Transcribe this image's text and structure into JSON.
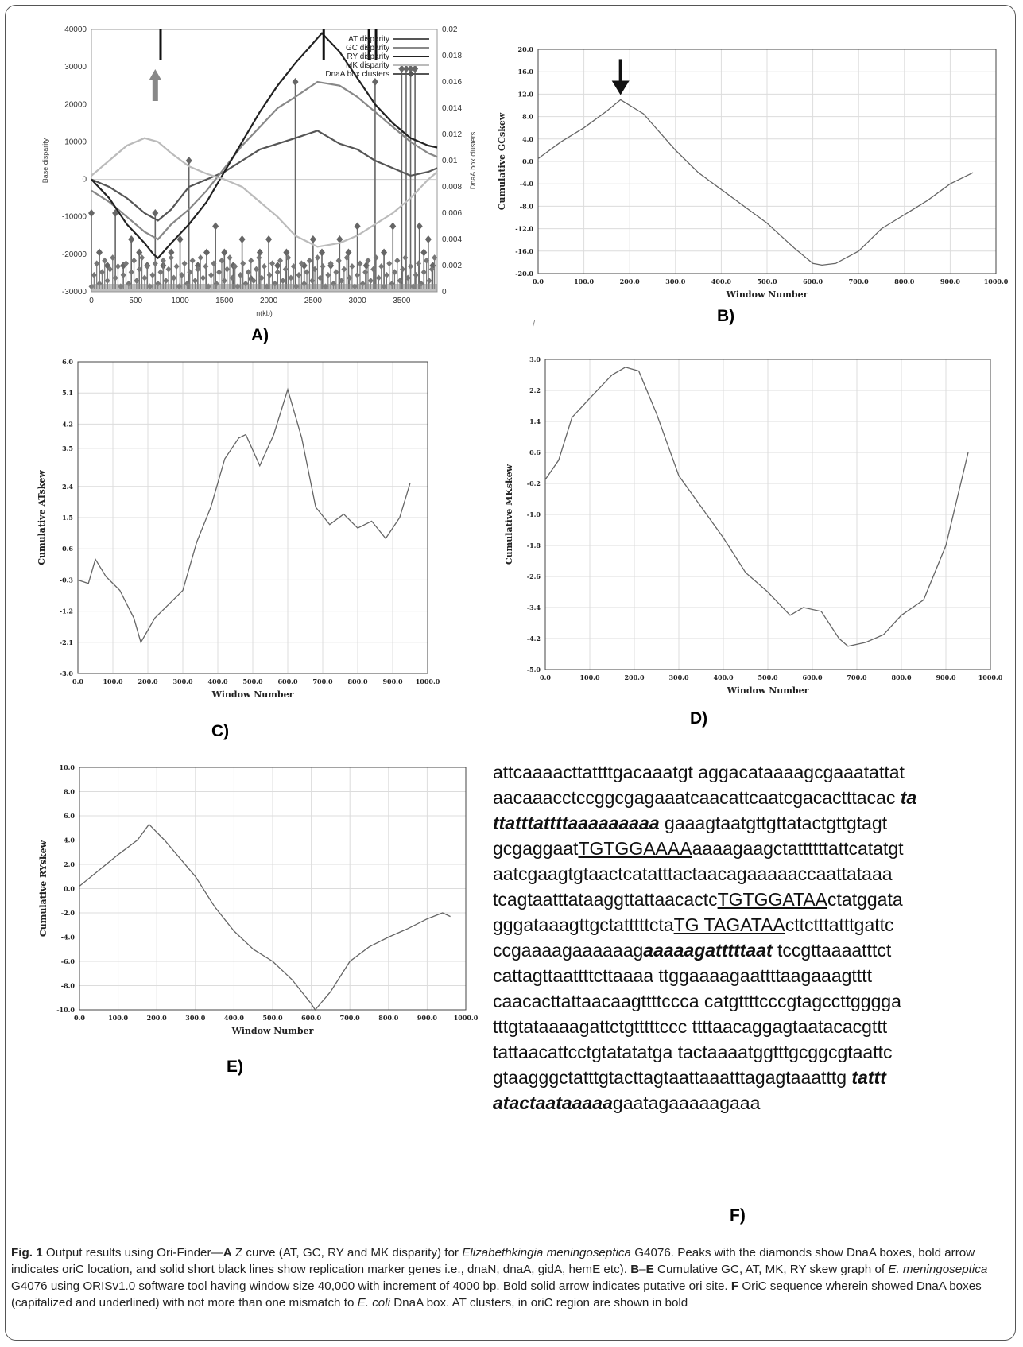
{
  "panels": {
    "A": {
      "label": "A)",
      "chart_data": {
        "type": "line",
        "ylabel": "Base disparity",
        "ylabel_right": "DnaA box clusters",
        "xlabel": "n(kb)",
        "xlim": [
          0,
          3900
        ],
        "ylim": [
          -30000,
          40000
        ],
        "ylim_right": [
          0,
          0.02
        ],
        "xticks": [
          0,
          500,
          1000,
          1500,
          2000,
          2500,
          3000,
          3500
        ],
        "yticks": [
          -30000,
          -20000,
          -10000,
          0,
          10000,
          20000,
          30000,
          40000
        ],
        "yticks_right": [
          0,
          0.002,
          0.004,
          0.006,
          0.008,
          0.01,
          0.012,
          0.014,
          0.016,
          0.018,
          0.02
        ],
        "legend_position": "top-right",
        "series": [
          {
            "name": "AT disparity",
            "color": "#555555",
            "x": [
              0,
              200,
              400,
              600,
              750,
              900,
              1100,
              1300,
              1500,
              1700,
              1900,
              2100,
              2300,
              2550,
              2800,
              3000,
              3200,
              3400,
              3600,
              3800,
              3900
            ],
            "y": [
              0,
              -2000,
              -5000,
              -9000,
              -11000,
              -8000,
              -2000,
              0,
              2000,
              5000,
              8000,
              9500,
              11000,
              13000,
              9500,
              8000,
              5000,
              3000,
              1000,
              2000,
              3000
            ]
          },
          {
            "name": "GC disparity",
            "color": "#888888",
            "x": [
              0,
              200,
              400,
              600,
              750,
              900,
              1100,
              1300,
              1500,
              1700,
              1900,
              2100,
              2300,
              2550,
              2800,
              3000,
              3200,
              3400,
              3600,
              3800,
              3900
            ],
            "y": [
              -3000,
              -6000,
              -10000,
              -14000,
              -16000,
              -12000,
              -8000,
              -3000,
              3000,
              9000,
              14000,
              19000,
              22000,
              26000,
              25000,
              22000,
              18000,
              14000,
              10000,
              7000,
              6000
            ]
          },
          {
            "name": "RY disparity",
            "color": "#222222",
            "x": [
              0,
              200,
              400,
              600,
              700,
              750,
              900,
              1100,
              1300,
              1500,
              1700,
              1900,
              2100,
              2300,
              2450,
              2600,
              2800,
              3000,
              3200,
              3400,
              3600,
              3800,
              3900
            ],
            "y": [
              0,
              -5000,
              -12000,
              -17000,
              -20000,
              -21000,
              -17000,
              -12000,
              -6000,
              2000,
              10000,
              18000,
              25000,
              31000,
              35000,
              39000,
              34000,
              27000,
              20000,
              15000,
              11000,
              9000,
              8500
            ]
          },
          {
            "name": "MK disparity",
            "color": "#bbbbbb",
            "x": [
              0,
              200,
              400,
              600,
              750,
              900,
              1100,
              1300,
              1500,
              1700,
              1900,
              2100,
              2300,
              2550,
              2800,
              3000,
              3200,
              3400,
              3600,
              3800,
              3900
            ],
            "y": [
              1000,
              5000,
              9000,
              11000,
              10000,
              7000,
              3500,
              1500,
              0,
              -2000,
              -6000,
              -10000,
              -15000,
              -18000,
              -17000,
              -15000,
              -12000,
              -9000,
              -5000,
              0,
              2000
            ]
          }
        ],
        "dnaa_box_clusters": {
          "name": "DnaA box clusters",
          "x": [
            0,
            90,
            180,
            270,
            360,
            450,
            540,
            630,
            720,
            810,
            900,
            1000,
            1100,
            1200,
            1300,
            1400,
            1500,
            1600,
            1700,
            1800,
            1900,
            2000,
            2100,
            2200,
            2300,
            2400,
            2500,
            2600,
            2700,
            2800,
            2900,
            3000,
            3100,
            3200,
            3300,
            3400,
            3500,
            3550,
            3600,
            3650,
            3700,
            3750,
            3800,
            3850
          ],
          "y": [
            0.006,
            0.003,
            0.002,
            0.006,
            0.002,
            0.004,
            0.003,
            0.002,
            0.006,
            0.002,
            0.003,
            0.004,
            0.01,
            0.002,
            0.003,
            0.005,
            0.003,
            0.002,
            0.004,
            0.001,
            0.003,
            0.004,
            0.002,
            0.003,
            0.016,
            0.002,
            0.004,
            0.003,
            0.002,
            0.004,
            0.003,
            0.005,
            0.002,
            0.016,
            0.003,
            0.005,
            0.017,
            0.017,
            0.017,
            0.017,
            0.005,
            0.003,
            0.004,
            0.002
          ]
        },
        "marker_lines_x": [
          780,
          2620,
          3130,
          3210
        ]
      }
    },
    "B": {
      "label": "B)",
      "chart_data": {
        "type": "line",
        "ylabel": "Cumulative GCskew",
        "xlabel": "Window Number",
        "xlim": [
          0,
          1000
        ],
        "ylim": [
          -20,
          20
        ],
        "xticks": [
          0,
          100,
          200,
          300,
          400,
          500,
          600,
          700,
          800,
          900,
          1000
        ],
        "yticks": [
          -20,
          -16,
          -12,
          -8,
          -4,
          0,
          4,
          8,
          12,
          16,
          20
        ],
        "x": [
          0,
          50,
          100,
          150,
          180,
          230,
          300,
          350,
          400,
          500,
          560,
          600,
          620,
          650,
          700,
          750,
          800,
          850,
          900,
          950
        ],
        "y": [
          0.5,
          3.5,
          6.0,
          9.0,
          11.0,
          8.5,
          2.0,
          -2.0,
          -5.0,
          -11.0,
          -15.5,
          -18.2,
          -18.5,
          -18.2,
          -16.0,
          -12.0,
          -9.5,
          -7.0,
          -4.0,
          -2.0
        ],
        "arrow_at_x": 180
      }
    },
    "C": {
      "label": "C)",
      "chart_data": {
        "type": "line",
        "ylabel": "Cumulative ATskew",
        "xlabel": "Window Number",
        "xlim": [
          0,
          1000
        ],
        "ylim": [
          -3.0,
          6.0
        ],
        "xticks": [
          0,
          100,
          200,
          300,
          400,
          500,
          600,
          700,
          800,
          900,
          1000
        ],
        "yticks": [
          -3.0,
          -2.1,
          -1.2,
          -0.3,
          0.6,
          1.5,
          2.4,
          3.5,
          4.2,
          5.1,
          6.0
        ],
        "x": [
          0,
          30,
          50,
          80,
          120,
          160,
          180,
          220,
          260,
          300,
          340,
          380,
          420,
          460,
          480,
          520,
          560,
          600,
          640,
          680,
          720,
          760,
          800,
          840,
          880,
          920,
          950
        ],
        "y": [
          -0.3,
          -0.4,
          0.3,
          -0.2,
          -0.6,
          -1.4,
          -2.1,
          -1.4,
          -1.0,
          -0.6,
          0.8,
          1.8,
          3.2,
          3.8,
          3.9,
          3.0,
          3.9,
          5.2,
          3.8,
          1.8,
          1.3,
          1.6,
          1.2,
          1.4,
          0.9,
          1.5,
          2.5
        ]
      }
    },
    "D": {
      "label": "D)",
      "chart_data": {
        "type": "line",
        "ylabel": "Cumulative MKskew",
        "xlabel": "Window Number",
        "xlim": [
          0,
          1000
        ],
        "ylim": [
          -5.0,
          3.0
        ],
        "xticks": [
          0,
          100,
          200,
          300,
          400,
          500,
          600,
          700,
          800,
          900,
          1000
        ],
        "yticks": [
          -5.0,
          -4.2,
          -3.4,
          -2.6,
          -1.8,
          -1.0,
          -0.2,
          0.6,
          1.4,
          2.2,
          3.0
        ],
        "x": [
          0,
          30,
          60,
          100,
          150,
          180,
          210,
          250,
          300,
          350,
          400,
          450,
          500,
          550,
          580,
          620,
          660,
          680,
          720,
          760,
          800,
          850,
          900,
          950
        ],
        "y": [
          -0.1,
          0.4,
          1.5,
          2.0,
          2.6,
          2.8,
          2.7,
          1.6,
          0.0,
          -0.8,
          -1.6,
          -2.5,
          -3.0,
          -3.6,
          -3.4,
          -3.5,
          -4.2,
          -4.4,
          -4.3,
          -4.1,
          -3.6,
          -3.2,
          -1.8,
          0.6
        ]
      }
    },
    "E": {
      "label": "E)",
      "chart_data": {
        "type": "line",
        "ylabel": "Cumulative RYskew",
        "xlabel": "Window Number",
        "xlim": [
          0,
          1000
        ],
        "ylim": [
          -10.0,
          10.0
        ],
        "xticks": [
          0,
          100,
          200,
          300,
          400,
          500,
          600,
          700,
          800,
          900,
          1000
        ],
        "yticks": [
          -10.0,
          -8.0,
          -6.0,
          -4.0,
          -2.0,
          0.0,
          2.0,
          4.0,
          6.0,
          8.0,
          10.0
        ],
        "x": [
          0,
          50,
          100,
          150,
          180,
          220,
          300,
          350,
          400,
          450,
          500,
          550,
          600,
          610,
          650,
          700,
          750,
          800,
          850,
          900,
          940,
          960
        ],
        "y": [
          0.2,
          1.5,
          2.8,
          4.0,
          5.3,
          4.0,
          1.0,
          -1.5,
          -3.5,
          -5.0,
          -6.0,
          -7.5,
          -9.5,
          -10.0,
          -8.5,
          -6.0,
          -4.8,
          -4.0,
          -3.3,
          -2.5,
          -2.0,
          -2.3
        ]
      }
    }
  },
  "stray_mark": "/",
  "sequence": {
    "label": "F)",
    "lines": [
      [
        {
          "t": "attcaaaacttattttgacaaatgt aggacataaaagcgaaatattat",
          "s": "n"
        }
      ],
      [
        {
          "t": "aacaaacctccggcgagaaatcaacattcaatcgacactttacac ",
          "s": "n"
        },
        {
          "t": "ta",
          "s": "b"
        }
      ],
      [
        {
          "t": "ttatttattttaaaaaaaaa",
          "s": "b"
        },
        {
          "t": " gaaagtaatgttgttatactgttgtagt",
          "s": "n"
        }
      ],
      [
        {
          "t": "gcgaggaat",
          "s": "n"
        },
        {
          "t": "TGTGGAAAA",
          "s": "u"
        },
        {
          "t": "aaaagaagctattttttattcatatgt",
          "s": "n"
        }
      ],
      [
        {
          "t": "aatcgaagtgtaactcatatttactaacagaaaaaccaattataaa",
          "s": "n"
        }
      ],
      [
        {
          "t": "tcagtaatttataaggttattaacactc",
          "s": "n"
        },
        {
          "t": "TGTGGATAA",
          "s": "u"
        },
        {
          "t": "ctatggata",
          "s": "n"
        }
      ],
      [
        {
          "t": "gggataaagttgctatttttcta",
          "s": "n"
        },
        {
          "t": "TG TAGATAA",
          "s": "u"
        },
        {
          "t": "cttctttatttgattc",
          "s": "n"
        }
      ],
      [
        {
          "t": "ccgaaaagaaaaaag",
          "s": "n"
        },
        {
          "t": "aaaaagatttttaat",
          "s": "b"
        },
        {
          "t": " tccgttaaaatttct",
          "s": "n"
        }
      ],
      [
        {
          "t": "cattagttaattttcttaaaa ttggaaaagaattttaagaaagtttt",
          "s": "n"
        }
      ],
      [
        {
          "t": "caacacttattaacaagttttccca catgttttcccgtagccttgggga",
          "s": "n"
        }
      ],
      [
        {
          "t": "tttgtataaaagattctgtttttccc ttttaacaggagtaatacacgttt",
          "s": "n"
        }
      ],
      [
        {
          "t": "tattaacattcctgtatatatga tactaaaatggtttgcggcgtaattc",
          "s": "n"
        }
      ],
      [
        {
          "t": "gtaagggctatttgtacttagtaattaaatttagagtaaatttg ",
          "s": "n"
        },
        {
          "t": "tattt",
          "s": "b"
        }
      ],
      [
        {
          "t": "atactaataaaaa",
          "s": "b"
        },
        {
          "t": "gaatagaaaaagaaa",
          "s": "n"
        }
      ]
    ]
  },
  "caption": {
    "parts": [
      {
        "t": "Fig. 1",
        "s": "b"
      },
      {
        "t": "  Output results using Ori-Finder—",
        "s": "n"
      },
      {
        "t": "A",
        "s": "b"
      },
      {
        "t": " Z curve (AT, GC, RY and MK disparity) for ",
        "s": "n"
      },
      {
        "t": "Elizabethkingia meningoseptica",
        "s": "i"
      },
      {
        "t": " G4076. Peaks with the diamonds show DnaA boxes, bold arrow indicates oriC location, and solid short black lines show replication marker genes i.e., dnaN, dnaA, gidA, hemE etc). ",
        "s": "n"
      },
      {
        "t": "B",
        "s": "b"
      },
      {
        "t": "–",
        "s": "n"
      },
      {
        "t": "E",
        "s": "b"
      },
      {
        "t": " Cumulative GC, AT, MK, RY skew graph of ",
        "s": "n"
      },
      {
        "t": "E. meningoseptica",
        "s": "i"
      },
      {
        "t": " G4076 using ORISv1.0 software tool having window size 40,000 with increment of 4000 bp. Bold solid arrow indicates putative ori site. ",
        "s": "n"
      },
      {
        "t": "F",
        "s": "b"
      },
      {
        "t": " OriC sequence wherein showed DnaA boxes (capitalized and underlined) with not more than one mismatch to ",
        "s": "n"
      },
      {
        "t": "E. coli",
        "s": "i"
      },
      {
        "t": " DnaA box. AT clusters, in oriC region are shown in bold",
        "s": "n"
      }
    ]
  }
}
